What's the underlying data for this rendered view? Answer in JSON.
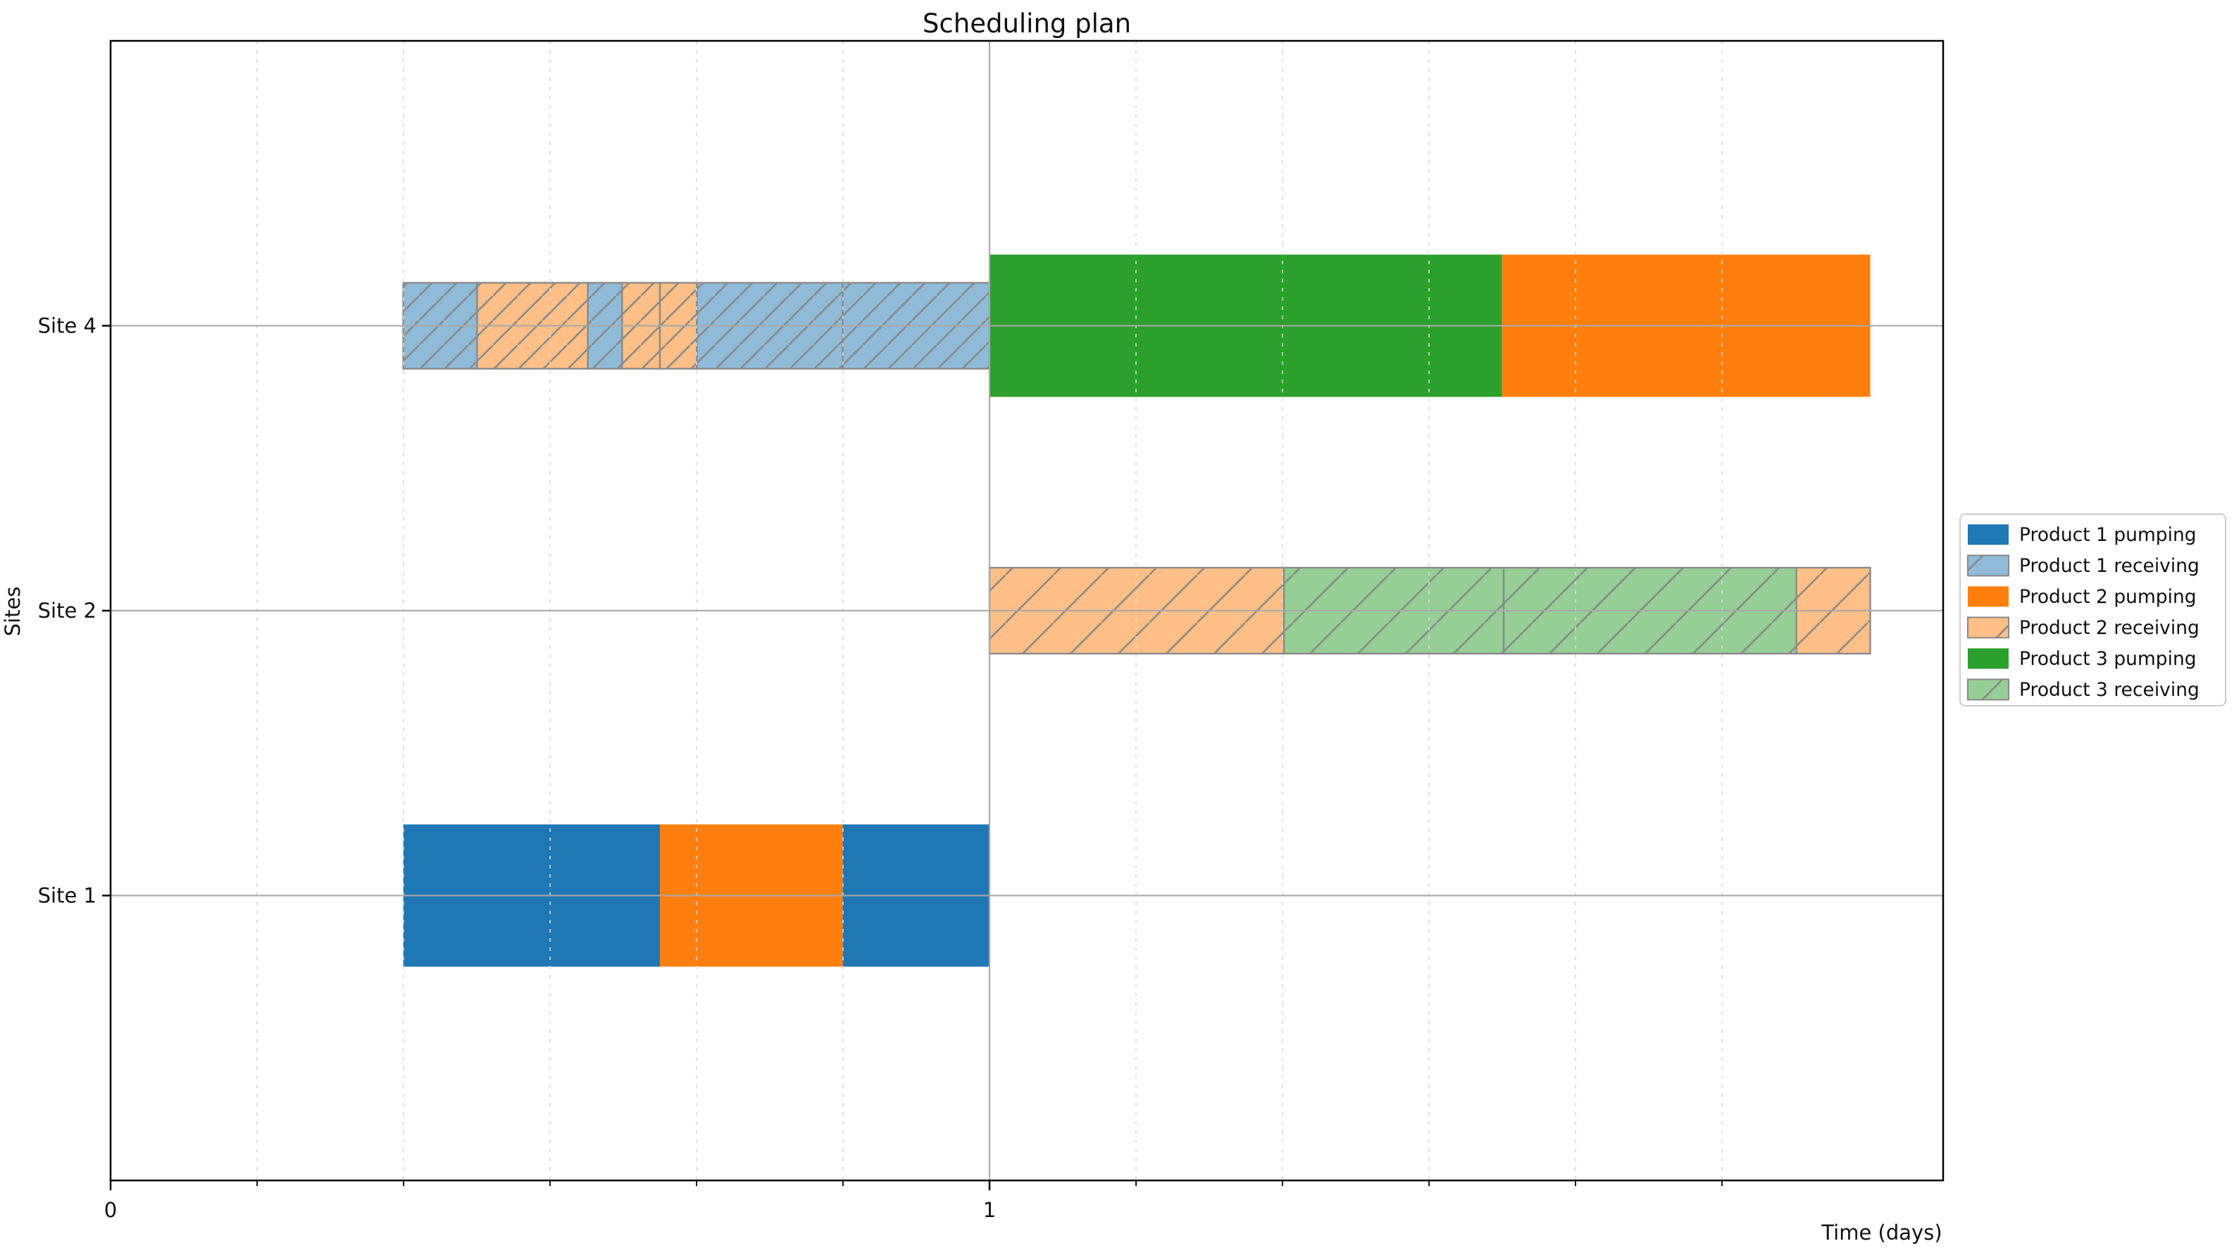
{
  "chart_data": {
    "type": "gantt",
    "title": "Scheduling plan",
    "xlabel": "Time (days)",
    "ylabel": "Sites",
    "xlim": [
      0,
      2.085
    ],
    "x_major_ticks": [
      0,
      1
    ],
    "x_major_tick_labels": [
      "0",
      "1"
    ],
    "x_minor_ticks": [
      0.1667,
      0.3333,
      0.5,
      0.6667,
      0.8333,
      1.1667,
      1.3333,
      1.5,
      1.6667,
      1.8333
    ],
    "grid": {
      "x_major": true,
      "x_minor_dashed": true,
      "y_major": true,
      "axisbelow": false
    },
    "colors": {
      "product1_pumping": "#1f77b4",
      "product1_receiving": "#8fbbd9",
      "product2_pumping": "#ff7f0e",
      "product2_receiving": "#ffbf86",
      "product3_pumping": "#2ca02c",
      "product3_receiving": "#95cf95",
      "hatch_edge": "#8a8a8a",
      "grid_major": "#a9a9a9",
      "grid_minor": "#d8d8d8",
      "spine": "#000000",
      "legend_border": "#cccccc"
    },
    "legend": {
      "position": "right-outside",
      "entries": [
        {
          "label": "Product 1 pumping",
          "color": "#1f77b4",
          "hatched": false
        },
        {
          "label": "Product 1 receiving",
          "color": "#8fbbd9",
          "hatched": true
        },
        {
          "label": "Product 2 pumping",
          "color": "#ff7f0e",
          "hatched": false
        },
        {
          "label": "Product 2 receiving",
          "color": "#ffbf86",
          "hatched": true
        },
        {
          "label": "Product 3 pumping",
          "color": "#2ca02c",
          "hatched": false
        },
        {
          "label": "Product 3 receiving",
          "color": "#95cf95",
          "hatched": true
        }
      ]
    },
    "rows": [
      {
        "site": "Site 2",
        "row_index_top_to_bottom": 1,
        "bars": [
          {
            "product": "Product 2",
            "mode": "receiving",
            "start": 1.0,
            "end": 1.335
          },
          {
            "product": "Product 3",
            "mode": "receiving",
            "start": 1.335,
            "end": 1.585
          },
          {
            "product": "Product 3",
            "mode": "receiving",
            "start": 1.585,
            "end": 1.918
          },
          {
            "product": "Product 2",
            "mode": "receiving",
            "start": 1.918,
            "end": 2.002
          }
        ]
      },
      {
        "site": "Site 4",
        "row_index_top_to_bottom": 0,
        "bars": [
          {
            "product": "Product 1",
            "mode": "receiving",
            "start": 0.333,
            "end": 0.417
          },
          {
            "product": "Product 2",
            "mode": "receiving",
            "start": 0.417,
            "end": 0.543
          },
          {
            "product": "Product 1",
            "mode": "receiving",
            "start": 0.543,
            "end": 0.582
          },
          {
            "product": "Product 2",
            "mode": "receiving",
            "start": 0.582,
            "end": 0.625
          },
          {
            "product": "Product 2",
            "mode": "receiving",
            "start": 0.625,
            "end": 0.667
          },
          {
            "product": "Product 1",
            "mode": "receiving",
            "start": 0.667,
            "end": 0.833
          },
          {
            "product": "Product 1",
            "mode": "receiving",
            "start": 0.833,
            "end": 1.0
          },
          {
            "product": "Product 3",
            "mode": "pumping",
            "start": 1.0,
            "end": 1.583
          },
          {
            "product": "Product 2",
            "mode": "pumping",
            "start": 1.583,
            "end": 2.002
          }
        ]
      },
      {
        "site": "Site 1",
        "row_index_top_to_bottom": 2,
        "bars": [
          {
            "product": "Product 1",
            "mode": "pumping",
            "start": 0.333,
            "end": 0.625
          },
          {
            "product": "Product 2",
            "mode": "pumping",
            "start": 0.625,
            "end": 0.833
          },
          {
            "product": "Product 1",
            "mode": "pumping",
            "start": 0.833,
            "end": 1.0
          }
        ]
      }
    ],
    "y_tick_labels_top_to_bottom": [
      "Site 4",
      "Site 2",
      "Site 1"
    ]
  }
}
